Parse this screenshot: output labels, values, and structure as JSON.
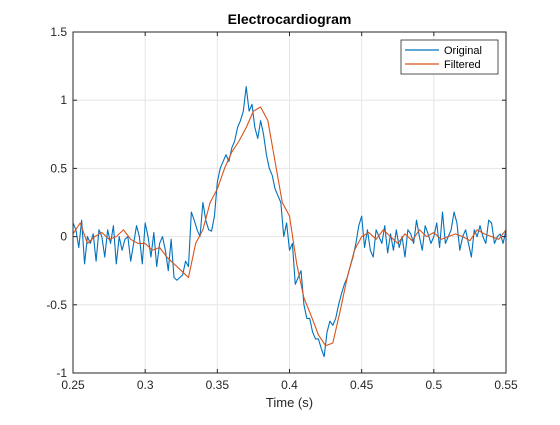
{
  "chart_data": {
    "type": "line",
    "title": "Electrocardiogram",
    "xlabel": "Time (s)",
    "ylabel": "",
    "xlim": [
      0.25,
      0.55
    ],
    "ylim": [
      -1,
      1.5
    ],
    "xticks": [
      0.25,
      0.3,
      0.35,
      0.4,
      0.45,
      0.5,
      0.55
    ],
    "xtick_labels": [
      "0.25",
      "0.3",
      "0.35",
      "0.4",
      "0.45",
      "0.5",
      "0.55"
    ],
    "yticks": [
      -1,
      -0.5,
      0,
      0.5,
      1,
      1.5
    ],
    "ytick_labels": [
      "-1",
      "-0.5",
      "0",
      "0.5",
      "1",
      "1.5"
    ],
    "grid": true,
    "legend_position": "top-right",
    "series": [
      {
        "name": "Original",
        "color": "#0072BD",
        "x": [
          0.25,
          0.252,
          0.254,
          0.256,
          0.258,
          0.26,
          0.262,
          0.264,
          0.266,
          0.268,
          0.27,
          0.272,
          0.274,
          0.276,
          0.278,
          0.28,
          0.282,
          0.284,
          0.286,
          0.288,
          0.29,
          0.292,
          0.294,
          0.296,
          0.298,
          0.3,
          0.302,
          0.304,
          0.306,
          0.308,
          0.31,
          0.312,
          0.314,
          0.316,
          0.318,
          0.32,
          0.322,
          0.324,
          0.326,
          0.328,
          0.33,
          0.332,
          0.334,
          0.336,
          0.338,
          0.34,
          0.342,
          0.344,
          0.346,
          0.348,
          0.35,
          0.352,
          0.354,
          0.356,
          0.358,
          0.36,
          0.362,
          0.364,
          0.366,
          0.368,
          0.37,
          0.372,
          0.374,
          0.376,
          0.378,
          0.38,
          0.382,
          0.384,
          0.386,
          0.388,
          0.39,
          0.392,
          0.394,
          0.396,
          0.398,
          0.4,
          0.402,
          0.404,
          0.406,
          0.408,
          0.41,
          0.412,
          0.414,
          0.416,
          0.418,
          0.42,
          0.422,
          0.424,
          0.426,
          0.428,
          0.43,
          0.432,
          0.434,
          0.436,
          0.438,
          0.44,
          0.442,
          0.444,
          0.446,
          0.448,
          0.45,
          0.452,
          0.454,
          0.456,
          0.458,
          0.46,
          0.462,
          0.464,
          0.466,
          0.468,
          0.47,
          0.472,
          0.474,
          0.476,
          0.478,
          0.48,
          0.482,
          0.484,
          0.486,
          0.488,
          0.49,
          0.492,
          0.494,
          0.496,
          0.498,
          0.5,
          0.502,
          0.504,
          0.506,
          0.508,
          0.51,
          0.512,
          0.514,
          0.516,
          0.518,
          0.52,
          0.522,
          0.524,
          0.526,
          0.528,
          0.53,
          0.532,
          0.534,
          0.536,
          0.538,
          0.54,
          0.542,
          0.544,
          0.546,
          0.548,
          0.55
        ],
        "y": [
          0.1,
          0.05,
          -0.08,
          0.12,
          -0.2,
          0.0,
          -0.05,
          0.02,
          -0.18,
          0.05,
          0.0,
          -0.15,
          0.05,
          -0.05,
          0.08,
          -0.2,
          0.0,
          -0.1,
          -0.02,
          0.0,
          -0.18,
          -0.05,
          0.08,
          0.0,
          -0.2,
          0.1,
          0.0,
          -0.15,
          0.03,
          -0.22,
          -0.05,
          0.0,
          -0.1,
          -0.25,
          -0.02,
          -0.3,
          -0.32,
          -0.3,
          -0.28,
          -0.18,
          -0.22,
          0.18,
          0.12,
          0.05,
          0.0,
          0.25,
          0.12,
          0.05,
          0.04,
          0.15,
          0.4,
          0.5,
          0.55,
          0.6,
          0.55,
          0.65,
          0.7,
          0.8,
          0.85,
          0.92,
          1.1,
          0.92,
          0.97,
          0.8,
          0.72,
          0.85,
          0.75,
          0.6,
          0.5,
          0.45,
          0.35,
          0.3,
          0.25,
          0.0,
          0.1,
          -0.1,
          -0.05,
          -0.35,
          -0.3,
          -0.25,
          -0.5,
          -0.6,
          -0.6,
          -0.7,
          -0.75,
          -0.75,
          -0.82,
          -0.88,
          -0.7,
          -0.62,
          -0.65,
          -0.6,
          -0.5,
          -0.42,
          -0.35,
          -0.3,
          -0.22,
          -0.15,
          -0.05,
          0.08,
          0.15,
          -0.08,
          0.05,
          -0.1,
          -0.15,
          0.05,
          0.0,
          -0.05,
          0.08,
          -0.12,
          0.02,
          -0.1,
          0.05,
          -0.08,
          0.0,
          -0.15,
          0.05,
          0.02,
          -0.05,
          0.12,
          0.0,
          -0.1,
          0.08,
          0.02,
          -0.05,
          0.0,
          0.1,
          -0.08,
          0.18,
          -0.05,
          0.0,
          0.05,
          0.18,
          0.1,
          -0.1,
          0.0,
          0.05,
          -0.05,
          -0.15,
          0.05,
          0.0,
          0.08,
          0.0,
          -0.05,
          0.12,
          0.1,
          -0.05,
          0.0,
          0.02,
          -0.05,
          0.05
        ]
      },
      {
        "name": "Filtered",
        "color": "#D95319",
        "x": [
          0.25,
          0.255,
          0.26,
          0.265,
          0.27,
          0.275,
          0.28,
          0.285,
          0.29,
          0.295,
          0.3,
          0.305,
          0.31,
          0.315,
          0.32,
          0.325,
          0.33,
          0.335,
          0.34,
          0.345,
          0.35,
          0.355,
          0.36,
          0.365,
          0.37,
          0.375,
          0.38,
          0.385,
          0.39,
          0.395,
          0.4,
          0.405,
          0.41,
          0.415,
          0.42,
          0.425,
          0.43,
          0.435,
          0.44,
          0.445,
          0.45,
          0.455,
          0.46,
          0.465,
          0.47,
          0.475,
          0.48,
          0.485,
          0.49,
          0.495,
          0.5,
          0.505,
          0.51,
          0.515,
          0.52,
          0.525,
          0.53,
          0.535,
          0.54,
          0.545,
          0.55
        ],
        "y": [
          0.02,
          0.1,
          -0.05,
          0.0,
          0.03,
          -0.02,
          0.0,
          0.05,
          -0.02,
          -0.05,
          -0.05,
          -0.1,
          -0.08,
          -0.15,
          -0.2,
          -0.25,
          -0.3,
          -0.05,
          0.05,
          0.25,
          0.35,
          0.5,
          0.62,
          0.7,
          0.8,
          0.92,
          0.95,
          0.85,
          0.55,
          0.25,
          0.15,
          -0.2,
          -0.45,
          -0.58,
          -0.72,
          -0.8,
          -0.78,
          -0.55,
          -0.3,
          -0.1,
          0.0,
          0.03,
          -0.02,
          0.05,
          0.0,
          -0.05,
          0.02,
          -0.03,
          0.05,
          0.0,
          0.03,
          -0.02,
          0.0,
          0.02,
          0.0,
          -0.03,
          0.05,
          0.02,
          0.0,
          -0.02,
          0.05
        ]
      }
    ]
  }
}
